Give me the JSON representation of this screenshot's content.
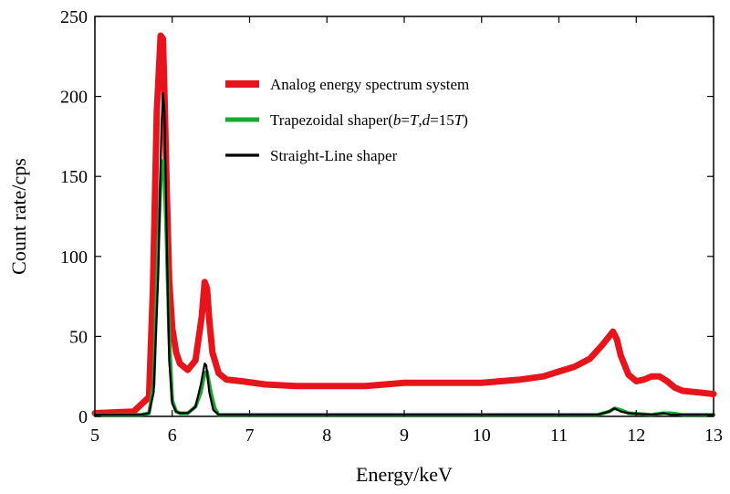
{
  "chart_data": {
    "type": "line",
    "title": "",
    "xlabel": "Energy/keV",
    "ylabel": "Count rate/cps",
    "xlim": [
      5,
      13
    ],
    "ylim": [
      0,
      250
    ],
    "x_ticks": [
      "5",
      "6",
      "7",
      "8",
      "9",
      "10",
      "11",
      "12",
      "13"
    ],
    "y_ticks": [
      "0",
      "50",
      "100",
      "150",
      "200",
      "250"
    ],
    "grid": false,
    "legend_position": "top-right",
    "series": [
      {
        "name": "Analog energy spectrum system",
        "color": "#e8141c",
        "x": [
          5.0,
          5.5,
          5.7,
          5.75,
          5.8,
          5.85,
          5.88,
          5.9,
          5.93,
          5.96,
          6.0,
          6.05,
          6.1,
          6.2,
          6.3,
          6.38,
          6.42,
          6.45,
          6.48,
          6.52,
          6.6,
          6.7,
          6.9,
          7.2,
          7.6,
          8.0,
          8.5,
          9.0,
          9.5,
          10.0,
          10.5,
          10.8,
          11.0,
          11.2,
          11.4,
          11.55,
          11.65,
          11.7,
          11.75,
          11.8,
          11.9,
          12.0,
          12.1,
          12.2,
          12.3,
          12.4,
          12.5,
          12.6,
          12.8,
          13.0
        ],
        "y": [
          2,
          3,
          12,
          80,
          190,
          238,
          236,
          200,
          140,
          85,
          55,
          40,
          33,
          29,
          35,
          62,
          84,
          80,
          60,
          40,
          27,
          23,
          22,
          20,
          19,
          19,
          19,
          21,
          21,
          21,
          23,
          25,
          28,
          31,
          36,
          44,
          50,
          53,
          48,
          38,
          26,
          22,
          23,
          25,
          25,
          22,
          18,
          16,
          15,
          14
        ]
      },
      {
        "name": "Trapezoidal shaper(b=T,d=15T)",
        "name_parts": [
          "Trapezoidal shaper(",
          "b",
          "=",
          "T",
          ",",
          "d",
          "=15",
          "T",
          ")"
        ],
        "color": "#1aa732",
        "x": [
          5.0,
          5.6,
          5.7,
          5.76,
          5.82,
          5.86,
          5.89,
          5.92,
          5.96,
          6.0,
          6.05,
          6.1,
          6.2,
          6.3,
          6.37,
          6.42,
          6.45,
          6.5,
          6.55,
          6.6,
          6.7,
          7.0,
          8.0,
          9.0,
          10.0,
          11.0,
          11.5,
          11.65,
          11.72,
          11.8,
          11.9,
          12.2,
          12.35,
          12.45,
          12.6,
          13.0
        ],
        "y": [
          1,
          1,
          2,
          20,
          110,
          158,
          160,
          120,
          50,
          10,
          3,
          2,
          2,
          6,
          15,
          27,
          28,
          15,
          5,
          1,
          1,
          1,
          1,
          1,
          1,
          1,
          1,
          3,
          5,
          4,
          2,
          1,
          2,
          2,
          1,
          1
        ]
      },
      {
        "name": "Straight-Line shaper",
        "color": "#000000",
        "x": [
          5.0,
          5.6,
          5.7,
          5.76,
          5.82,
          5.86,
          5.88,
          5.9,
          5.93,
          5.96,
          6.0,
          6.05,
          6.1,
          6.2,
          6.3,
          6.37,
          6.42,
          6.44,
          6.48,
          6.53,
          6.6,
          6.7,
          7.0,
          8.0,
          9.0,
          10.0,
          11.0,
          11.5,
          11.65,
          11.72,
          11.8,
          11.9,
          12.2,
          12.35,
          12.45,
          12.6,
          13.0
        ],
        "y": [
          1,
          1,
          2,
          15,
          90,
          180,
          202,
          190,
          110,
          35,
          8,
          3,
          2,
          2,
          6,
          20,
          33,
          32,
          15,
          4,
          1,
          1,
          1,
          1,
          1,
          1,
          1,
          1,
          3,
          5,
          3,
          2,
          1,
          2,
          1,
          1,
          1
        ]
      }
    ]
  }
}
